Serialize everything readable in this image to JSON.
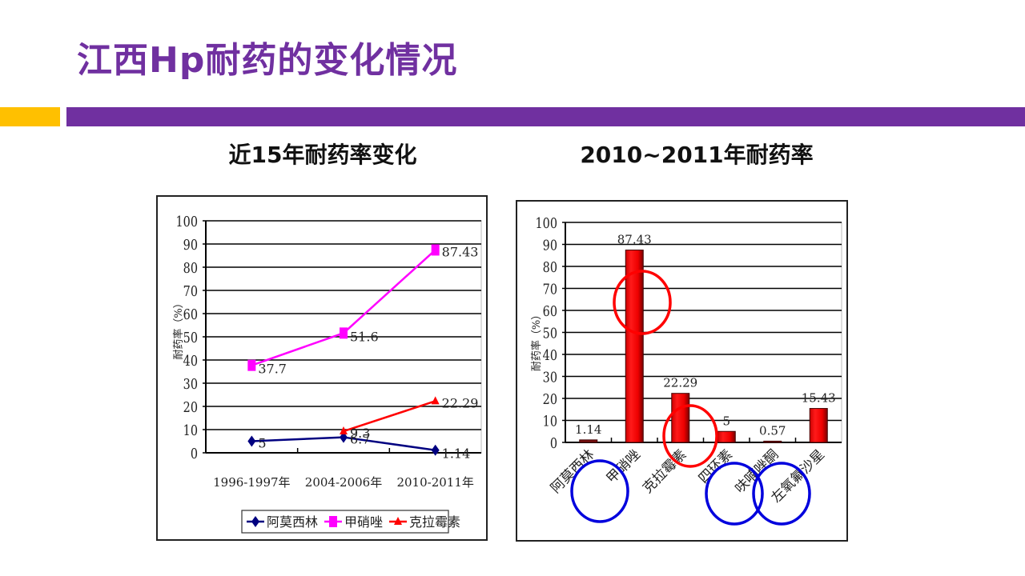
{
  "slide": {
    "title": "江西Hp耐药的变化情况",
    "accent_colors": {
      "purple": "#7030A0",
      "yellow": "#FFC000"
    }
  },
  "left_panel": {
    "subtitle": "近15年耐药率变化"
  },
  "right_panel": {
    "subtitle": "2010~2011年耐药率"
  },
  "chart_data": [
    {
      "type": "line",
      "title": "近15年耐药率变化",
      "xlabel": "",
      "ylabel": "耐药率（%）",
      "ylim": [
        0,
        100
      ],
      "yticks": [
        0,
        10,
        20,
        30,
        40,
        50,
        60,
        70,
        80,
        90,
        100
      ],
      "grid": true,
      "categories": [
        "1996-1997年",
        "2004-2006年",
        "2010-2011年"
      ],
      "legend_position": "bottom",
      "series": [
        {
          "name": "阿莫西林",
          "color": "#000080",
          "marker": "diamond",
          "values": [
            5,
            6.7,
            1.14
          ],
          "labels": [
            "5",
            "6.7",
            "1.14"
          ]
        },
        {
          "name": "甲硝唑",
          "color": "#FF00FF",
          "marker": "square",
          "values": [
            37.7,
            51.6,
            87.43
          ],
          "labels": [
            "37.7",
            "51.6",
            "87.43"
          ]
        },
        {
          "name": "克拉霉素",
          "color": "#FF0000",
          "marker": "triangle",
          "values": [
            null,
            9.3,
            22.29
          ],
          "labels": [
            "",
            "9.3",
            "22.29"
          ]
        }
      ]
    },
    {
      "type": "bar",
      "title": "2010~2011年耐药率",
      "xlabel": "",
      "ylabel": "耐药率（%）",
      "ylim": [
        0,
        100
      ],
      "yticks": [
        0,
        10,
        20,
        30,
        40,
        50,
        60,
        70,
        80,
        90,
        100
      ],
      "grid": true,
      "categories": [
        "阿莫西林",
        "甲硝唑",
        "克拉霉素",
        "四环素",
        "呋喃唑酮",
        "左氧氟沙星"
      ],
      "values": [
        1.14,
        87.43,
        22.29,
        5,
        0.57,
        15.43
      ],
      "labels": [
        "1.14",
        "87.43",
        "22.29",
        "5",
        "0.57",
        "15.43"
      ],
      "bar_color": "#FF0000",
      "annotations": [
        {
          "shape": "circle",
          "color": "#FF0000",
          "around": "甲硝唑 bar (~60-80%)"
        },
        {
          "shape": "circle",
          "color": "#FF0000",
          "around": "克拉霉素 / 四环素 bars (low)"
        },
        {
          "shape": "circle",
          "color": "#0000FF",
          "around": "阿莫西林 / 甲硝唑 labels"
        },
        {
          "shape": "circle",
          "color": "#0000FF",
          "around": "四环素 / 呋喃唑酮 labels"
        },
        {
          "shape": "circle",
          "color": "#0000FF",
          "around": "呋喃唑酮 / 左氧氟沙星 labels"
        }
      ]
    }
  ]
}
